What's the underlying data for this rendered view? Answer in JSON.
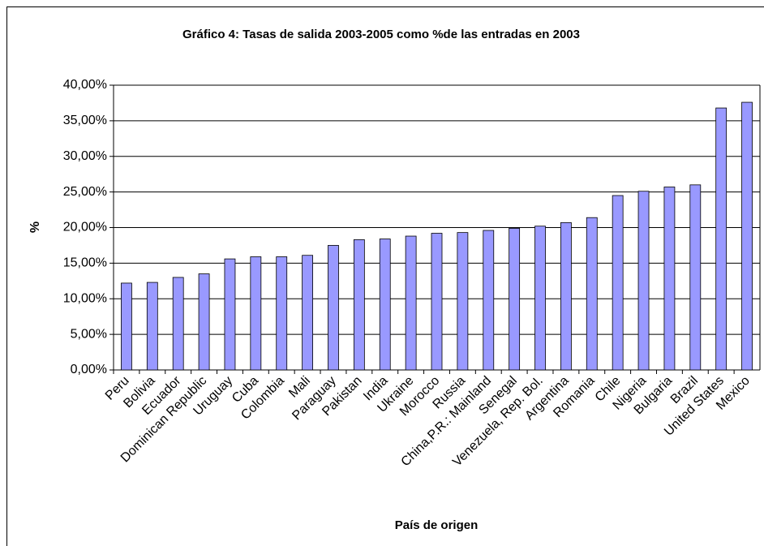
{
  "chart_data": {
    "type": "bar",
    "title": "Gráfico 4: Tasas de salida 2003-2005 como %de las entradas en 2003",
    "x_label": "País de origen",
    "y_label": "%",
    "categories": [
      "Peru",
      "Bolivia",
      "Ecuador",
      "Dominican Republic",
      "Uruguay",
      "Cuba",
      "Colombia",
      "Mali",
      "Paraguay",
      "Pakistan",
      "India",
      "Ukraine",
      "Morocco",
      "Russia",
      "China,P.R.: Mainland",
      "Senegal",
      "Venezuela, Rep. Bol.",
      "Argentina",
      "Romania",
      "Chile",
      "Nigeria",
      "Bulgaria",
      "Brazil",
      "United States",
      "Mexico"
    ],
    "values": [
      12.2,
      12.3,
      13.0,
      13.5,
      15.6,
      15.9,
      15.9,
      16.1,
      17.5,
      18.3,
      18.4,
      18.8,
      19.2,
      19.3,
      19.6,
      19.9,
      20.2,
      20.7,
      21.4,
      24.5,
      25.1,
      25.7,
      26.0,
      36.8,
      37.6
    ],
    "color": "#9999ff",
    "ylim": [
      0,
      40
    ],
    "yticks": [
      {
        "value": 0,
        "label": "0,00%"
      },
      {
        "value": 5,
        "label": "5,00%"
      },
      {
        "value": 10,
        "label": "10,00%"
      },
      {
        "value": 15,
        "label": "15,00%"
      },
      {
        "value": 20,
        "label": "20,00%"
      },
      {
        "value": 25,
        "label": "25,00%"
      },
      {
        "value": 30,
        "label": "30,00%"
      },
      {
        "value": 35,
        "label": "35,00%"
      },
      {
        "value": 40,
        "label": "40,00%"
      }
    ],
    "grid": true
  }
}
